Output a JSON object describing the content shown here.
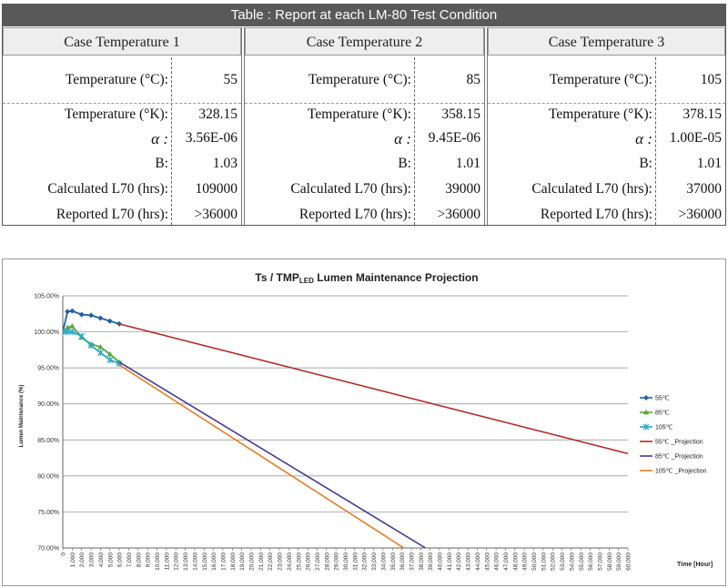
{
  "table": {
    "title": "Table : Report at each LM-80 Test Condition",
    "cases": [
      {
        "header": "Case Temperature 1",
        "rows": [
          {
            "label": "Temperature (°C):",
            "value": "55"
          },
          {
            "label": "Temperature (°K):",
            "value": "328.15"
          },
          {
            "label": "α :",
            "value": "3.56E-06"
          },
          {
            "label": "B:",
            "value": "1.03"
          },
          {
            "label": "Calculated L70 (hrs):",
            "value": "109000"
          },
          {
            "label": "Reported L70 (hrs):",
            "value": ">36000"
          }
        ]
      },
      {
        "header": "Case Temperature 2",
        "rows": [
          {
            "label": "Temperature (°C):",
            "value": "85"
          },
          {
            "label": "Temperature (°K):",
            "value": "358.15"
          },
          {
            "label": "α :",
            "value": "9.45E-06"
          },
          {
            "label": "B:",
            "value": "1.01"
          },
          {
            "label": "Calculated L70 (hrs):",
            "value": "39000"
          },
          {
            "label": "Reported L70 (hrs):",
            "value": ">36000"
          }
        ]
      },
      {
        "header": "Case Temperature 3",
        "rows": [
          {
            "label": "Temperature (°C):",
            "value": "105"
          },
          {
            "label": "Temperature (°K):",
            "value": "378.15"
          },
          {
            "label": "α :",
            "value": "1.00E-05"
          },
          {
            "label": "B:",
            "value": "1.01"
          },
          {
            "label": "Calculated L70 (hrs):",
            "value": "37000"
          },
          {
            "label": "Reported L70 (hrs):",
            "value": ">36000"
          }
        ]
      }
    ]
  },
  "chart_data": {
    "type": "line",
    "title_main": "Ts / TMP",
    "title_sub": "LED",
    "title_rest": " Lumen Maintenance Projection",
    "xlabel": "Time [Hour]",
    "ylabel": "Lumen Maintenance (%)",
    "xlim": [
      0,
      60000
    ],
    "ylim": [
      70,
      105
    ],
    "x_ticks": [
      "0",
      "1,000",
      "2,000",
      "3,000",
      "4,000",
      "5,000",
      "6,000",
      "7,000",
      "8,000",
      "9,000",
      "10,000",
      "11,000",
      "12,000",
      "13,000",
      "14,000",
      "15,000",
      "16,000",
      "17,000",
      "18,000",
      "19,000",
      "20,000",
      "21,000",
      "22,000",
      "23,000",
      "24,000",
      "25,000",
      "26,000",
      "27,000",
      "28,000",
      "29,000",
      "30,000",
      "31,000",
      "32,000",
      "33,000",
      "34,000",
      "35,000",
      "36,000",
      "37,000",
      "38,000",
      "39,000",
      "40,000",
      "41,000",
      "42,000",
      "43,000",
      "44,000",
      "45,000",
      "46,000",
      "47,000",
      "48,000",
      "49,000",
      "50,000",
      "51,000",
      "52,000",
      "53,000",
      "54,000",
      "55,000",
      "56,000",
      "57,000",
      "58,000",
      "59,000",
      "60,000"
    ],
    "y_ticks": [
      "70.00%",
      "75.00%",
      "80.00%",
      "85.00%",
      "90.00%",
      "95.00%",
      "100.00%",
      "105.00%"
    ],
    "grid": true,
    "legend_position": "right",
    "series": [
      {
        "name": "55℃",
        "color": "#1f5fa8",
        "marker": "diamond",
        "x": [
          0,
          500,
          1000,
          2000,
          3000,
          4000,
          5000,
          6000
        ],
        "y": [
          100.0,
          102.8,
          102.9,
          102.4,
          102.3,
          101.9,
          101.5,
          101.1
        ]
      },
      {
        "name": "85℃",
        "color": "#58a83a",
        "marker": "triangle",
        "x": [
          0,
          500,
          1000,
          2000,
          3000,
          4000,
          5000,
          6000
        ],
        "y": [
          100.0,
          100.6,
          100.8,
          99.2,
          98.3,
          97.9,
          96.9,
          95.8
        ]
      },
      {
        "name": "105℃",
        "color": "#28a9c8",
        "marker": "star",
        "x": [
          0,
          500,
          1000,
          2000,
          3000,
          4000,
          5000,
          6000
        ],
        "y": [
          100.0,
          100.0,
          100.0,
          99.4,
          98.1,
          97.1,
          96.1,
          95.6
        ]
      },
      {
        "name": "55℃ _Projection",
        "color": "#b42b2b",
        "marker": "none",
        "x": [
          6000,
          60000
        ],
        "y": [
          101.1,
          83.1
        ]
      },
      {
        "name": "85℃ _Projection",
        "color": "#4a3a8e",
        "marker": "none",
        "x": [
          6000,
          38500
        ],
        "y": [
          95.8,
          70.0
        ]
      },
      {
        "name": "105℃ _Projection",
        "color": "#e87b20",
        "marker": "none",
        "x": [
          6000,
          36200
        ],
        "y": [
          95.4,
          70.0
        ]
      }
    ]
  }
}
